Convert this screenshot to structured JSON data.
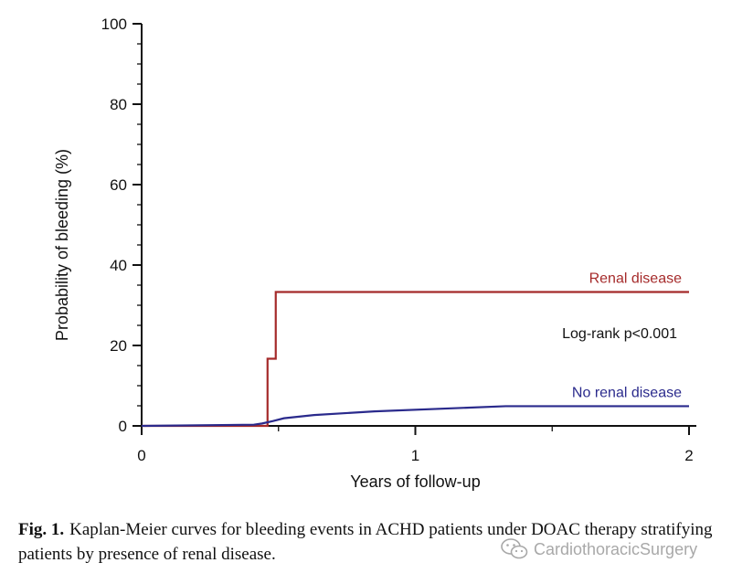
{
  "chart_data": {
    "type": "line",
    "xlabel": "Years of follow-up",
    "ylabel": "Probability of bleeding (%)",
    "xlim": [
      0,
      2
    ],
    "ylim": [
      0,
      100
    ],
    "x_ticks": [
      "0",
      "1",
      "2"
    ],
    "y_ticks": [
      "0",
      "20",
      "40",
      "60",
      "80",
      "100"
    ],
    "step": true,
    "series": [
      {
        "name": "Renal disease",
        "color": "#a52a2a",
        "x": [
          0,
          0.45,
          0.46,
          0.46,
          0.49,
          0.49,
          2.0
        ],
        "y": [
          0,
          0,
          0,
          16.7,
          16.7,
          33.3,
          33.3
        ]
      },
      {
        "name": "No renal disease",
        "color": "#2a2a8c",
        "x": [
          0,
          0.41,
          0.44,
          0.48,
          0.52,
          0.63,
          0.85,
          1.33,
          2.0
        ],
        "y": [
          0,
          0.3,
          0.6,
          1.2,
          1.9,
          2.7,
          3.6,
          4.9,
          4.9
        ]
      }
    ],
    "annotations": [
      {
        "text": "Log-rank p<0.001"
      }
    ]
  },
  "caption": {
    "label": "Fig. 1.",
    "text": "Kaplan-Meier curves for bleeding events in ACHD patients under DOAC therapy stratifying patients by presence of renal disease."
  },
  "watermark": {
    "text": "CardiothoracicSurgery",
    "icon": "wechat-icon"
  }
}
